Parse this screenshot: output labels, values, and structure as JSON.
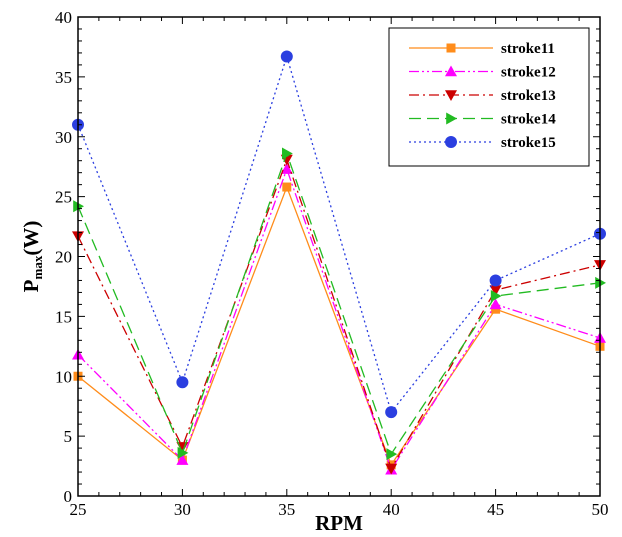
{
  "chart_data": {
    "type": "line",
    "title": "",
    "xlabel": "RPM",
    "ylabel": "P",
    "ylabel_sub": "max",
    "ylabel_unit": "(W)",
    "xlim": [
      25,
      50
    ],
    "ylim": [
      0,
      40
    ],
    "xticks": [
      25,
      30,
      35,
      40,
      45,
      50
    ],
    "yticks": [
      0,
      5,
      10,
      15,
      20,
      25,
      30,
      35,
      40
    ],
    "grid": false,
    "legend_position": "top-right",
    "x": [
      25,
      30,
      35,
      40,
      45,
      50
    ],
    "series": [
      {
        "name": "stroke11",
        "color": "#ff8c1a",
        "marker": "square",
        "dash": "solid",
        "values": [
          10.0,
          3.0,
          25.8,
          2.6,
          15.6,
          12.5
        ]
      },
      {
        "name": "stroke12",
        "color": "#ff00ff",
        "marker": "triangle-up",
        "dash": "dashdotdot",
        "values": [
          11.8,
          3.0,
          27.3,
          2.2,
          16.0,
          13.2
        ]
      },
      {
        "name": "stroke13",
        "color": "#cc0000",
        "marker": "triangle-down",
        "dash": "dashdot",
        "values": [
          21.7,
          4.1,
          28.1,
          2.3,
          17.2,
          19.3
        ]
      },
      {
        "name": "stroke14",
        "color": "#22bb22",
        "marker": "triangle-right",
        "dash": "dash",
        "values": [
          24.2,
          3.6,
          28.6,
          3.5,
          16.7,
          17.8
        ]
      },
      {
        "name": "stroke15",
        "color": "#2b3fe0",
        "marker": "circle",
        "dash": "dot",
        "values": [
          31.0,
          9.5,
          36.7,
          7.0,
          18.0,
          21.9
        ]
      }
    ]
  }
}
